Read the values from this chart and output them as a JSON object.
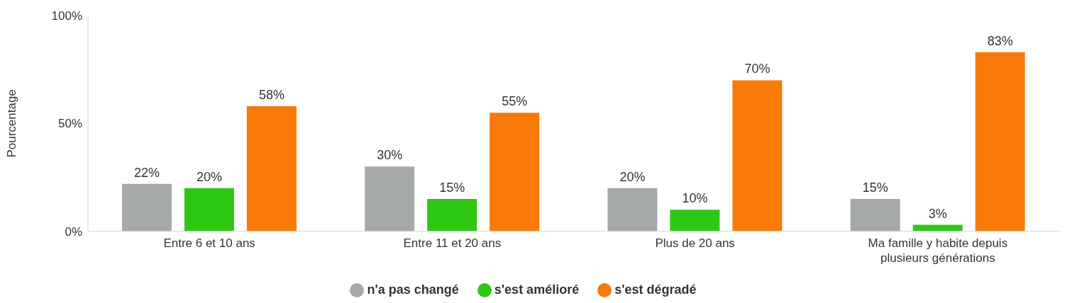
{
  "chart_data": {
    "type": "bar",
    "ylabel": "Pourcentage",
    "categories": [
      "Entre 6 et 10 ans",
      "Entre 11 et 20 ans",
      "Plus de 20 ans",
      "Ma famille y habite depuis plusieurs générations"
    ],
    "series": [
      {
        "name": "n'a pas changé",
        "color": "#a5a9a8",
        "values": [
          22,
          30,
          20,
          15
        ],
        "value_labels": [
          "22%",
          "30%",
          "20%",
          "15%"
        ]
      },
      {
        "name": "s'est amélioré",
        "color": "#2ec814",
        "values": [
          20,
          15,
          10,
          3
        ],
        "value_labels": [
          "20%",
          "15%",
          "10%",
          "3%"
        ]
      },
      {
        "name": "s'est dégradé",
        "color": "#f97a08",
        "values": [
          58,
          55,
          70,
          83
        ],
        "value_labels": [
          "58%",
          "55%",
          "70%",
          "83%"
        ]
      }
    ],
    "ylim": [
      0,
      100
    ],
    "yticks": [
      {
        "value": 0,
        "label": "0%"
      },
      {
        "value": 50,
        "label": "50%"
      },
      {
        "value": 100,
        "label": "100%"
      }
    ],
    "grid": false,
    "legend": "bottom"
  }
}
